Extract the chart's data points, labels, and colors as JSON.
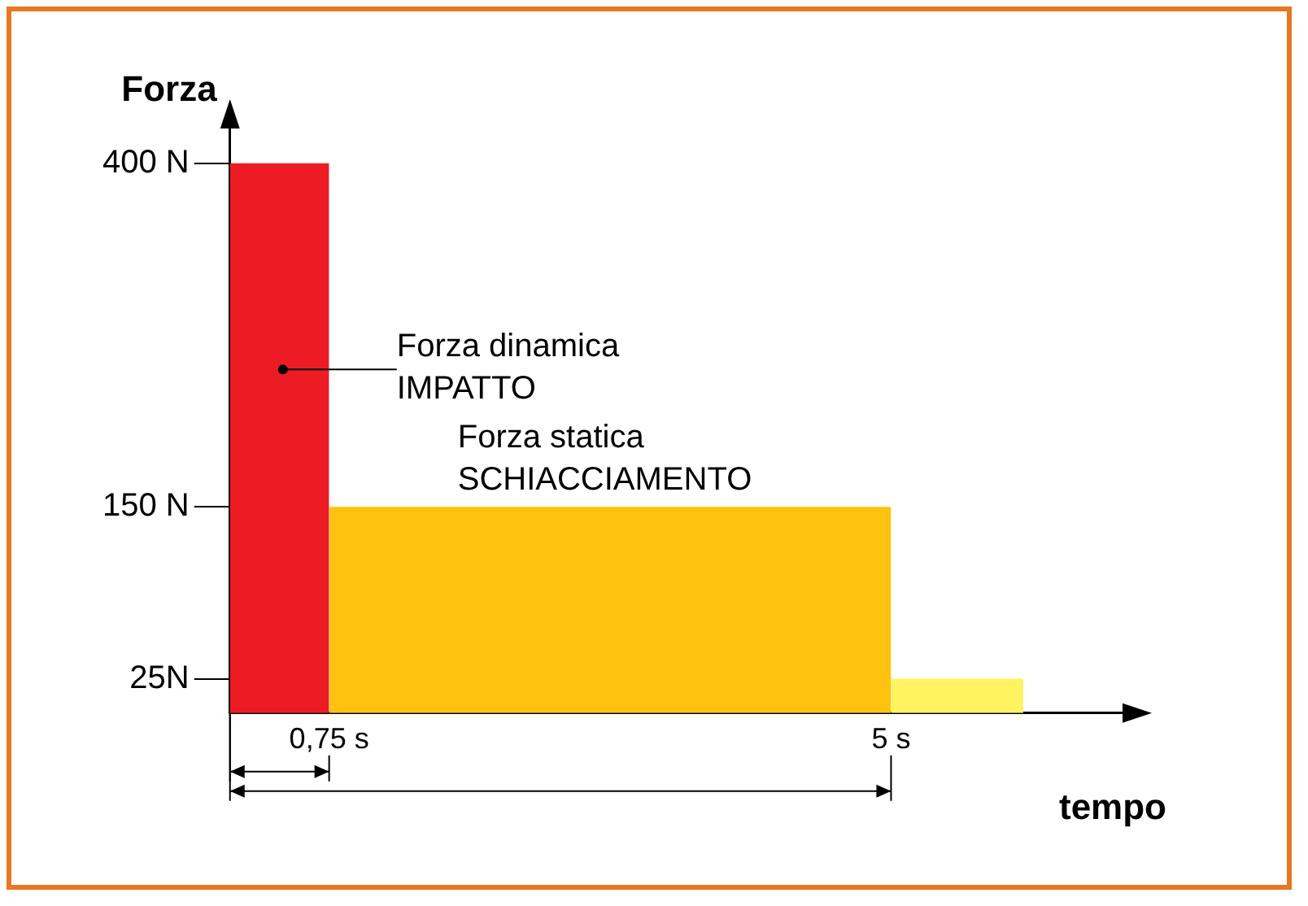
{
  "chart_data": {
    "type": "area",
    "xlabel": "tempo",
    "ylabel": "Forza",
    "xlim": [
      0,
      6.8
    ],
    "ylim": [
      0,
      430
    ],
    "xticks": [
      {
        "value": 0.75,
        "label": "0,75 s"
      },
      {
        "value": 5,
        "label": "5 s"
      }
    ],
    "yticks": [
      {
        "value": 25,
        "label": "25N"
      },
      {
        "value": 150,
        "label": "150 N"
      },
      {
        "value": 400,
        "label": "400 N"
      }
    ],
    "series": [
      {
        "color": "#ed1c24",
        "x": [
          0,
          0.75
        ],
        "values": [
          400,
          400
        ]
      },
      {
        "color": "#ffc20e",
        "x": [
          0.75,
          5
        ],
        "values": [
          150,
          150
        ]
      },
      {
        "color": "#fff460",
        "x": [
          5,
          6
        ],
        "values": [
          25,
          25
        ]
      }
    ],
    "annotations": [
      {
        "text": "Forza dinamica\nIMPATTO",
        "x": 0.4,
        "y": 250
      },
      "Forza statica\nSCHIACCIAMENTO"
    ]
  }
}
